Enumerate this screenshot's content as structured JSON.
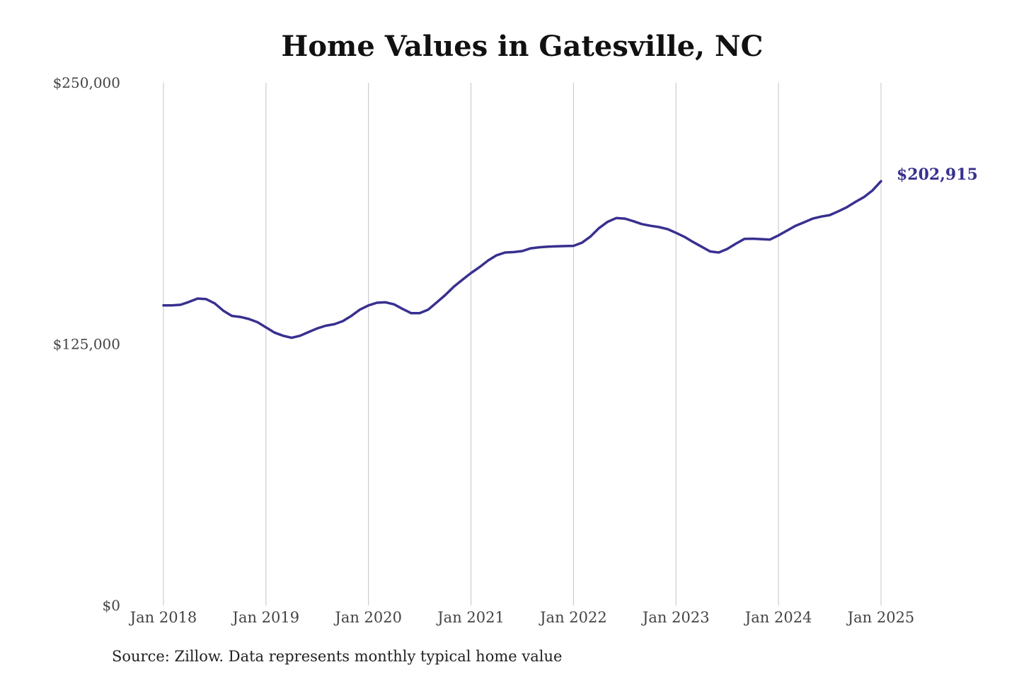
{
  "chart_data": {
    "type": "line",
    "title": "Home Values in Gatesville, NC",
    "xlabel": "",
    "ylabel": "",
    "ylim": [
      0,
      250000
    ],
    "y_ticks": [
      "$250,000",
      "$125,000",
      "$0"
    ],
    "y_tick_values": [
      250000,
      125000,
      0
    ],
    "x_ticks": [
      "Jan 2018",
      "Jan 2019",
      "Jan 2020",
      "Jan 2021",
      "Jan 2022",
      "Jan 2023",
      "Jan 2024",
      "Jan 2025"
    ],
    "x_tick_values": [
      2018,
      2019,
      2020,
      2021,
      2022,
      2023,
      2024,
      2025
    ],
    "grid": "vertical",
    "line_color": "#38308f",
    "end_label": "$202,915",
    "x": [
      2018.0,
      2018.083,
      2018.167,
      2018.25,
      2018.333,
      2018.417,
      2018.5,
      2018.583,
      2018.667,
      2018.75,
      2018.833,
      2018.917,
      2019.0,
      2019.083,
      2019.167,
      2019.25,
      2019.333,
      2019.417,
      2019.5,
      2019.583,
      2019.667,
      2019.75,
      2019.833,
      2019.917,
      2020.0,
      2020.083,
      2020.167,
      2020.25,
      2020.333,
      2020.417,
      2020.5,
      2020.583,
      2020.667,
      2020.75,
      2020.833,
      2020.917,
      2021.0,
      2021.083,
      2021.167,
      2021.25,
      2021.333,
      2021.417,
      2021.5,
      2021.583,
      2021.667,
      2021.75,
      2021.833,
      2021.917,
      2022.0,
      2022.083,
      2022.167,
      2022.25,
      2022.333,
      2022.417,
      2022.5,
      2022.583,
      2022.667,
      2022.75,
      2022.833,
      2022.917,
      2023.0,
      2023.083,
      2023.167,
      2023.25,
      2023.333,
      2023.417,
      2023.5,
      2023.583,
      2023.667,
      2023.75,
      2023.833,
      2023.917,
      2024.0,
      2024.083,
      2024.167,
      2024.25,
      2024.333,
      2024.417,
      2024.5,
      2024.583,
      2024.667,
      2024.75,
      2024.833,
      2024.917,
      2025.0
    ],
    "series": [
      {
        "values": [
          143500,
          143500,
          143800,
          145200,
          146800,
          146500,
          144500,
          141000,
          138500,
          138000,
          137000,
          135500,
          133000,
          130500,
          129000,
          128000,
          129000,
          130800,
          132500,
          133800,
          134500,
          136000,
          138500,
          141500,
          143500,
          144800,
          145000,
          144000,
          141800,
          139800,
          139800,
          141500,
          145000,
          148500,
          152500,
          155800,
          159000,
          161800,
          165000,
          167500,
          168800,
          169000,
          169500,
          170800,
          171300,
          171600,
          171800,
          171900,
          172000,
          173500,
          176500,
          180500,
          183500,
          185300,
          185000,
          183800,
          182400,
          181600,
          181000,
          180000,
          178200,
          176300,
          173800,
          171600,
          169300,
          168800,
          170500,
          173000,
          175300,
          175400,
          175200,
          175000,
          177000,
          179300,
          181600,
          183300,
          185000,
          186000,
          186700,
          188500,
          190500,
          193000,
          195300,
          198500,
          202915
        ]
      }
    ]
  },
  "footer": {
    "source": "Source: Zillow. Data represents monthly typical home value"
  }
}
